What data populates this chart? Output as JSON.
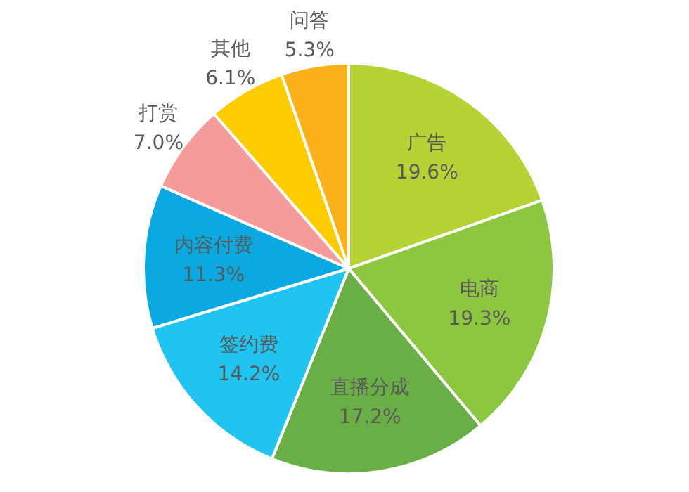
{
  "chart_data": {
    "type": "pie",
    "categories": [
      "广告",
      "电商",
      "直播分成",
      "签约费",
      "内容付费",
      "打赏",
      "其他",
      "问答"
    ],
    "values": [
      19.6,
      19.3,
      17.2,
      14.2,
      11.3,
      7.0,
      6.1,
      5.3
    ],
    "value_labels": [
      "19.6%",
      "19.3%",
      "17.2%",
      "14.2%",
      "11.3%",
      "7.0%",
      "6.1%",
      "5.3%"
    ],
    "colors": [
      "#b5d334",
      "#8dc63f",
      "#6aaf45",
      "#1fc4f0",
      "#0ba9e2",
      "#f59b9b",
      "#ffcc00",
      "#fbb21a"
    ],
    "legend": false
  }
}
